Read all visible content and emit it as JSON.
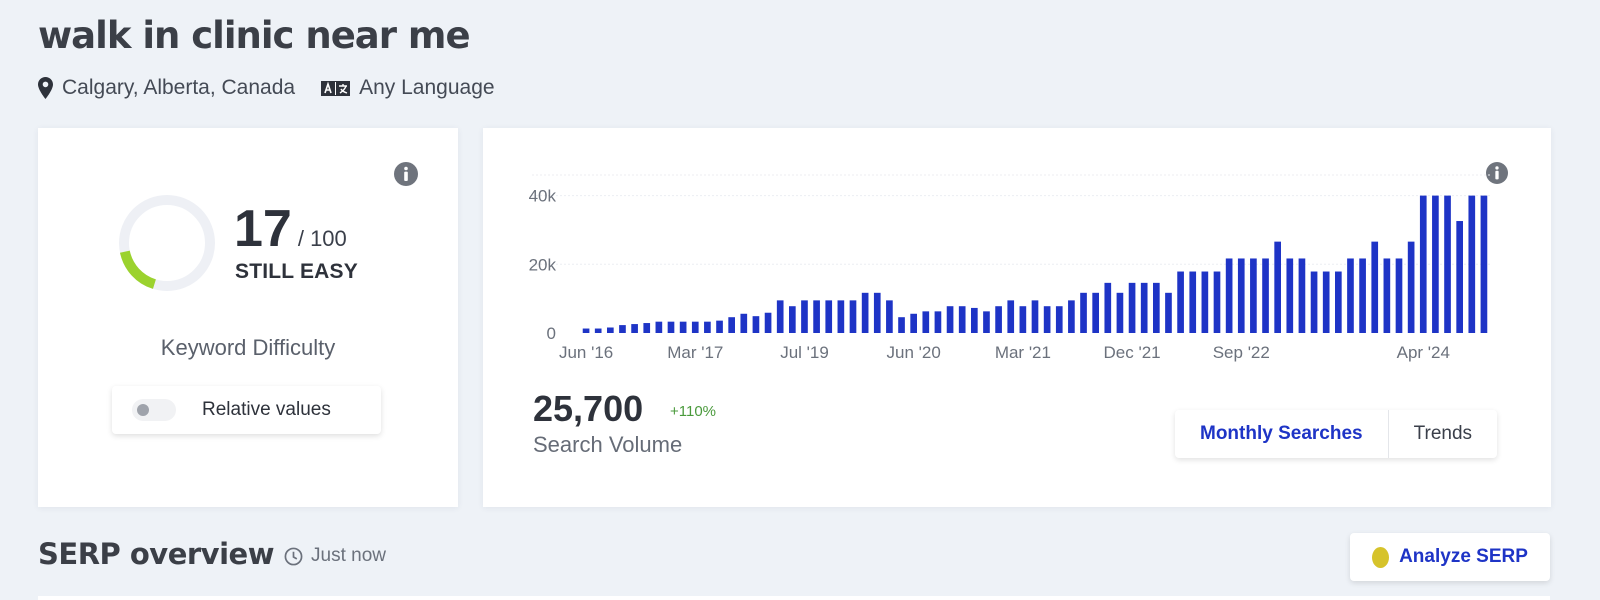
{
  "keyword": "walk in clinic near me",
  "location": "Calgary, Alberta, Canada",
  "language": "Any Language",
  "keyword_difficulty": {
    "score": "17",
    "max": "/ 100",
    "status": "STILL EASY",
    "label": "Keyword Difficulty",
    "relative_values_label": "Relative values",
    "score_fraction": 0.17,
    "gauge_color": "#9bd22e",
    "gauge_track_color": "#eef0f5"
  },
  "search_volume": {
    "value": "25,700",
    "change": "+110%",
    "label": "Search Volume",
    "tabs": [
      {
        "label": "Monthly Searches",
        "active": true
      },
      {
        "label": "Trends",
        "active": false
      }
    ]
  },
  "chart_data": {
    "type": "bar",
    "color": "#1e34c6",
    "y_ticks": [
      "40k",
      "20k",
      "0"
    ],
    "y_tick_values": [
      40000,
      20000,
      0
    ],
    "ylim": [
      0,
      46000
    ],
    "x_tick_labels": [
      {
        "label": "Jun '16",
        "index": 0
      },
      {
        "label": "Mar '17",
        "index": 9
      },
      {
        "label": "Jul '19",
        "index": 18
      },
      {
        "label": "Jun '20",
        "index": 27
      },
      {
        "label": "Mar '21",
        "index": 36
      },
      {
        "label": "Dec '21",
        "index": 45
      },
      {
        "label": "Sep '22",
        "index": 54
      },
      {
        "label": "Apr '24",
        "index": 69
      }
    ],
    "values": [
      1300,
      1300,
      1600,
      2300,
      2600,
      2900,
      3300,
      3300,
      3300,
      3300,
      3300,
      3600,
      4600,
      5600,
      4900,
      5900,
      9500,
      7800,
      9500,
      9500,
      9500,
      9500,
      9500,
      11700,
      11700,
      9500,
      4600,
      5600,
      6300,
      6300,
      7800,
      7800,
      7300,
      6300,
      7800,
      9500,
      7800,
      9500,
      7800,
      7800,
      9500,
      11700,
      11700,
      14600,
      11700,
      14600,
      14600,
      14600,
      11700,
      17900,
      17900,
      17900,
      17900,
      21700,
      21700,
      21700,
      21700,
      26600,
      21700,
      21700,
      17900,
      17900,
      17900,
      21700,
      21700,
      26600,
      21700,
      21700,
      26600,
      40000,
      40000,
      40000,
      32600,
      40000,
      40000
    ]
  },
  "serp": {
    "title": "SERP overview",
    "time": "Just now",
    "analyze_label": "Analyze SERP"
  }
}
